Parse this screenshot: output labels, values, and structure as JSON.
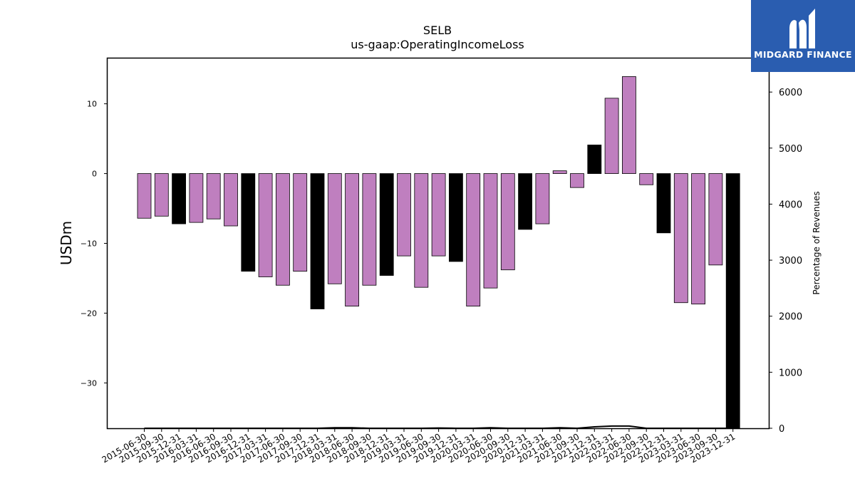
{
  "chart_data": {
    "type": "bar",
    "title": "SELB",
    "subtitle": "us-gaap:OperatingIncomeLoss",
    "ylabel": "USDm",
    "y2label": "Percentage of Revenues",
    "ylim": [
      -36.5,
      16.5
    ],
    "y2lim": [
      0,
      6600
    ],
    "yticks": [
      10,
      0,
      -10,
      -20,
      -30
    ],
    "y2ticks": [
      0,
      1000,
      2000,
      3000,
      4000,
      5000,
      6000
    ],
    "bar_colors": {
      "quarter": "#bf7fbf",
      "year_end": "#000000"
    },
    "categories": [
      "2015-06-30",
      "2015-09-30",
      "2015-12-31",
      "2016-03-31",
      "2016-06-30",
      "2016-09-30",
      "2016-12-31",
      "2017-03-31",
      "2017-06-30",
      "2017-09-30",
      "2017-12-31",
      "2018-03-31",
      "2018-06-30",
      "2018-09-30",
      "2018-12-31",
      "2019-03-31",
      "2019-06-30",
      "2019-09-30",
      "2019-12-31",
      "2020-03-31",
      "2020-06-30",
      "2020-09-30",
      "2020-12-31",
      "2021-03-31",
      "2021-06-30",
      "2021-09-30",
      "2021-12-31",
      "2022-03-31",
      "2022-06-30",
      "2022-09-30",
      "2022-12-31",
      "2023-03-31",
      "2023-06-30",
      "2023-09-30",
      "2023-12-31"
    ],
    "series": [
      {
        "values": [
          -6.4,
          -6.1,
          -7.2,
          -7.0,
          -6.5,
          -7.5,
          -14.0,
          -14.8,
          -16.0,
          -14.0,
          -19.4,
          -15.8,
          -19.0,
          -16.0,
          -14.6,
          -11.8,
          -16.3,
          -11.8,
          -12.6,
          -19.0,
          -16.4,
          -13.8,
          -8.0,
          -7.2,
          0.4,
          -2.0,
          4.1,
          10.8,
          13.9,
          -1.6,
          -8.5,
          -18.5,
          -18.7,
          -13.1,
          -36.5
        ],
        "year_end": [
          false,
          false,
          true,
          false,
          false,
          false,
          true,
          false,
          false,
          false,
          true,
          false,
          false,
          false,
          true,
          false,
          false,
          false,
          true,
          false,
          false,
          false,
          true,
          false,
          false,
          false,
          true,
          false,
          false,
          false,
          true,
          false,
          false,
          false,
          true
        ]
      },
      {
        "axis": "secondary",
        "values": [
          0,
          0,
          0,
          0,
          0,
          0,
          0,
          0,
          0,
          0,
          0,
          10,
          10,
          0,
          0,
          0,
          0,
          5,
          0,
          0,
          10,
          0,
          0,
          0,
          10,
          0,
          25,
          40,
          40,
          0,
          0,
          0,
          0,
          0,
          0
        ]
      }
    ],
    "grid": false,
    "legend": "none"
  },
  "logo": {
    "text": "MIDGARD FINANCE"
  }
}
